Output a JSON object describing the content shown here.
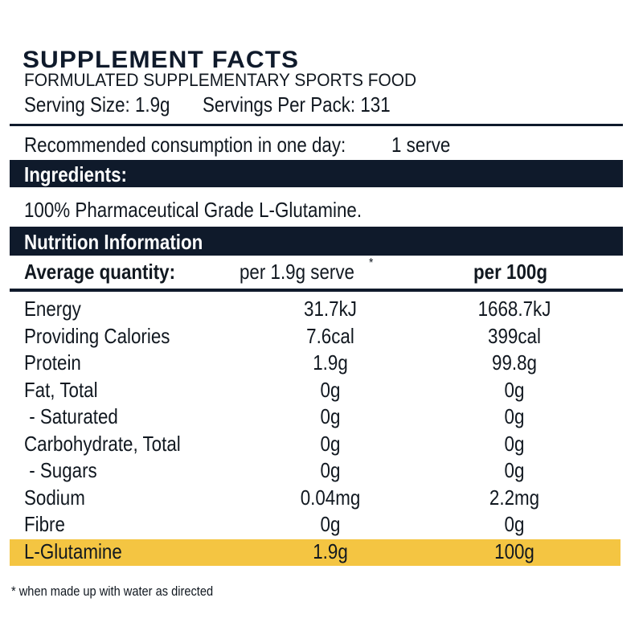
{
  "header": {
    "title": "SUPPLEMENT FACTS",
    "subtitle": "FORMULATED SUPPLEMENTARY SPORTS FOOD",
    "serving_size": "Serving Size: 1.9g",
    "servings_per_pack": "Servings Per Pack: 131"
  },
  "recommended": {
    "label": "Recommended consumption in one day:",
    "value": "1 serve"
  },
  "ingredients": {
    "heading": "Ingredients:",
    "text": "100% Pharmaceutical Grade L-Glutamine."
  },
  "nutrition": {
    "heading": "Nutrition Information",
    "columns": [
      "Average quantity:",
      "per 1.9g serve",
      "per 100g"
    ],
    "column_note": "*",
    "rows": [
      [
        "Energy",
        "31.7kJ",
        "1668.7kJ"
      ],
      [
        "Providing Calories",
        "7.6cal",
        "399cal"
      ],
      [
        "Protein",
        "1.9g",
        "99.8g"
      ],
      [
        "Fat, Total",
        "0g",
        "0g"
      ],
      [
        " - Saturated",
        "0g",
        "0g"
      ],
      [
        "Carbohydrate, Total",
        "0g",
        "0g"
      ],
      [
        " - Sugars",
        "0g",
        "0g"
      ],
      [
        "Sodium",
        "0.04mg",
        "2.2mg"
      ],
      [
        "Fibre",
        "0g",
        "0g"
      ],
      [
        "L-Glutamine",
        "1.9g",
        "100g"
      ]
    ]
  },
  "footnote": "* when made up with water as directed"
}
